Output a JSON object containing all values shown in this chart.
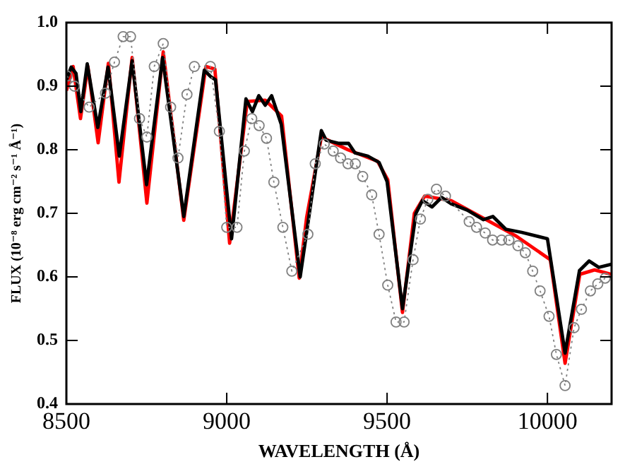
{
  "chart_data": {
    "type": "line",
    "xlabel": "WAVELENGTH (Å)",
    "ylabel": "FLUX (10⁻⁸ erg cm⁻² s⁻¹ Å⁻¹)",
    "xlim": [
      8500,
      10200
    ],
    "xticks": [
      8500,
      9000,
      9500,
      10000
    ],
    "ylim": [
      0.4,
      1.0
    ],
    "yticks": [
      0.4,
      0.5,
      0.6,
      0.7,
      0.8,
      0.9,
      {
        "value": 1,
        "label": "1.0"
      }
    ],
    "grid": false,
    "legend": false,
    "series": [
      {
        "color": "#808080",
        "marker": "circle",
        "line_style": "dotted",
        "x": [
          8502,
          8525,
          8571,
          8622,
          8650,
          8677,
          8700,
          8728,
          8751,
          8774,
          8802,
          8825,
          8848,
          8876,
          8899,
          8949,
          8977,
          9000,
          9032,
          9055,
          9078,
          9101,
          9124,
          9147,
          9175,
          9203,
          9253,
          9276,
          9304,
          9332,
          9355,
          9378,
          9401,
          9424,
          9452,
          9475,
          9502,
          9528,
          9553,
          9581,
          9604,
          9627,
          9654,
          9682,
          9756,
          9779,
          9806,
          9829,
          9857,
          9880,
          9908,
          9931,
          9954,
          9977,
          10005,
          10028,
          10055,
          10083,
          10106,
          10134,
          10157,
          10180
        ],
        "values": [
          0.916,
          0.9,
          0.867,
          0.889,
          0.938,
          0.978,
          0.978,
          0.849,
          0.82,
          0.931,
          0.967,
          0.867,
          0.787,
          0.887,
          0.931,
          0.931,
          0.829,
          0.678,
          0.678,
          0.798,
          0.849,
          0.838,
          0.818,
          0.749,
          0.678,
          0.609,
          0.667,
          0.778,
          0.809,
          0.798,
          0.787,
          0.778,
          0.778,
          0.758,
          0.729,
          0.667,
          0.587,
          0.529,
          0.529,
          0.627,
          0.691,
          0.722,
          0.738,
          0.727,
          0.687,
          0.678,
          0.669,
          0.658,
          0.658,
          0.658,
          0.649,
          0.638,
          0.609,
          0.578,
          0.538,
          0.478,
          0.429,
          0.52,
          0.549,
          0.578,
          0.589,
          0.598
        ]
      },
      {
        "color": "#000000",
        "marker": "none",
        "line_style": "solid",
        "x": [
          8500,
          8515,
          8530,
          8545,
          8565,
          8598,
          8630,
          8665,
          8705,
          8750,
          8800,
          8866,
          8930,
          8950,
          8965,
          9015,
          9060,
          9080,
          9100,
          9120,
          9140,
          9170,
          9229,
          9295,
          9310,
          9350,
          9380,
          9400,
          9440,
          9475,
          9500,
          9548,
          9590,
          9610,
          9640,
          9670,
          9700,
          9750,
          9800,
          9830,
          9870,
          9920,
          10000,
          10055,
          10100,
          10130,
          10160,
          10200
        ],
        "values": [
          0.91,
          0.93,
          0.92,
          0.86,
          0.935,
          0.835,
          0.93,
          0.79,
          0.94,
          0.745,
          0.945,
          0.695,
          0.925,
          0.915,
          0.91,
          0.66,
          0.88,
          0.86,
          0.885,
          0.87,
          0.885,
          0.84,
          0.6,
          0.83,
          0.815,
          0.81,
          0.81,
          0.795,
          0.79,
          0.78,
          0.75,
          0.55,
          0.7,
          0.72,
          0.71,
          0.725,
          0.715,
          0.705,
          0.69,
          0.695,
          0.675,
          0.67,
          0.66,
          0.48,
          0.61,
          0.625,
          0.615,
          0.62
        ]
      },
      {
        "color": "#ff0000",
        "marker": "none",
        "line_style": "solid",
        "x": [
          8500,
          8521,
          8544,
          8567,
          8599,
          8631,
          8664,
          8705,
          8751,
          8802,
          8866,
          8935,
          8963,
          9009,
          9064,
          9120,
          9171,
          9226,
          9249,
          9295,
          9378,
          9470,
          9502,
          9548,
          9585,
          9617,
          9700,
          9903,
          10009,
          10055,
          10101,
          10147,
          10200
        ],
        "values": [
          0.893,
          0.931,
          0.849,
          0.931,
          0.811,
          0.936,
          0.749,
          0.945,
          0.716,
          0.954,
          0.689,
          0.931,
          0.927,
          0.653,
          0.876,
          0.878,
          0.853,
          0.598,
          0.693,
          0.82,
          0.8,
          0.782,
          0.753,
          0.544,
          0.7,
          0.727,
          0.72,
          0.664,
          0.627,
          0.464,
          0.604,
          0.611,
          0.604
        ]
      }
    ]
  }
}
